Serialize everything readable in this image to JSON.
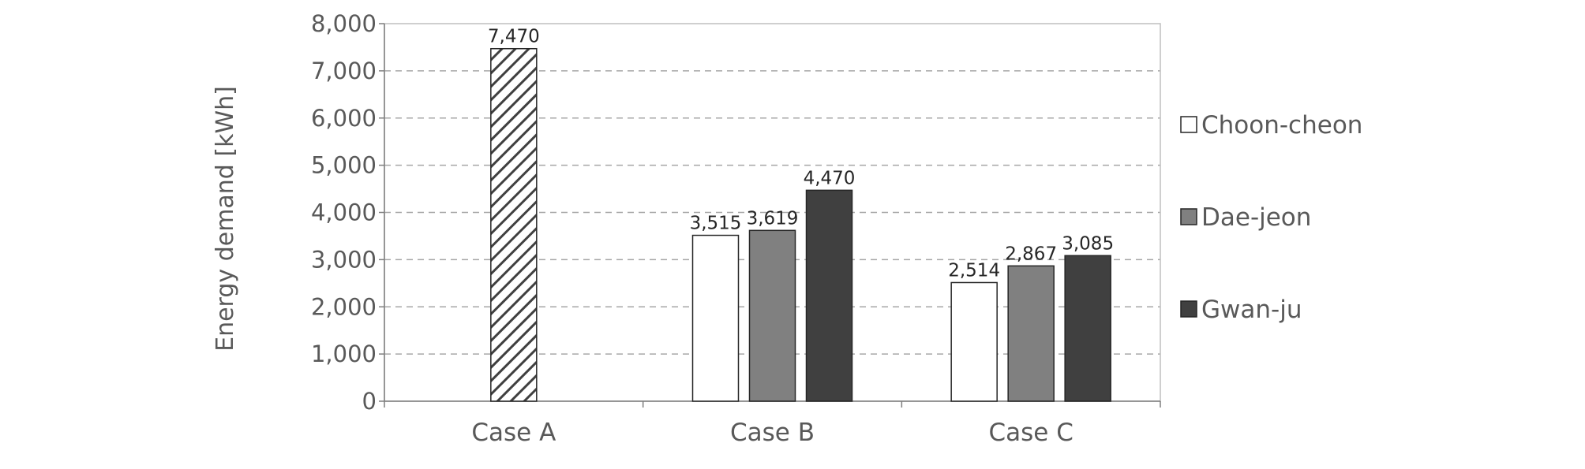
{
  "chart_data": {
    "type": "bar",
    "ylabel": "Energy demand [kWh]",
    "xlabel": "",
    "ylim": [
      0,
      8000
    ],
    "yticks": [
      0,
      1000,
      2000,
      3000,
      4000,
      5000,
      6000,
      7000,
      8000
    ],
    "ytick_labels": [
      "0",
      "1,000",
      "2,000",
      "3,000",
      "4,000",
      "5,000",
      "6,000",
      "7,000",
      "8,000"
    ],
    "grid": true,
    "legend_position": "right",
    "categories": [
      "Case A",
      "Case B",
      "Case C"
    ],
    "groups": [
      {
        "category": "Case A",
        "bars": [
          {
            "series": null,
            "value": 7470,
            "label": "7,470",
            "pattern": "hatched"
          }
        ]
      },
      {
        "category": "Case B",
        "bars": [
          {
            "series": "Choon-cheon",
            "value": 3515,
            "label": "3,515"
          },
          {
            "series": "Dae-jeon",
            "value": 3619,
            "label": "3,619"
          },
          {
            "series": "Gwan-ju",
            "value": 4470,
            "label": "4,470"
          }
        ]
      },
      {
        "category": "Case C",
        "bars": [
          {
            "series": "Choon-cheon",
            "value": 2514,
            "label": "2,514"
          },
          {
            "series": "Dae-jeon",
            "value": 2867,
            "label": "2,867"
          },
          {
            "series": "Gwan-ju",
            "value": 3085,
            "label": "3,085"
          }
        ]
      }
    ],
    "series": [
      {
        "name": "Choon-cheon",
        "color": "#ffffff"
      },
      {
        "name": "Dae-jeon",
        "color": "#808080"
      },
      {
        "name": "Gwan-ju",
        "color": "#404040"
      }
    ],
    "hatch_color": "#404040",
    "edge_color": "#262626"
  }
}
